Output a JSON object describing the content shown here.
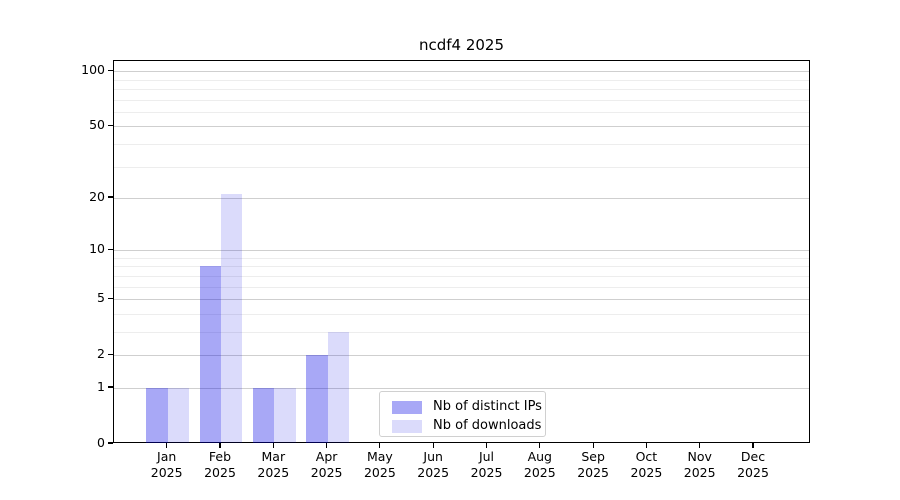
{
  "chart_data": {
    "type": "bar",
    "title": "ncdf4 2025",
    "x_year": "2025",
    "categories": [
      "Jan",
      "Feb",
      "Mar",
      "Apr",
      "May",
      "Jun",
      "Jul",
      "Aug",
      "Sep",
      "Oct",
      "Nov",
      "Dec"
    ],
    "series": [
      {
        "name": "Nb of distinct IPs",
        "color": "rgba(0,0,230,0.34)",
        "color_hex": "#a8a8f6",
        "values": [
          1,
          8,
          1,
          2,
          0,
          0,
          0,
          0,
          0,
          0,
          0,
          0
        ]
      },
      {
        "name": "Nb of downloads",
        "color": "rgba(0,0,230,0.14)",
        "color_hex": "#dbdbfc",
        "values": [
          1,
          21,
          1,
          3,
          0,
          0,
          0,
          0,
          0,
          0,
          0,
          0
        ]
      }
    ],
    "yscale": "log1p",
    "ylim": [
      0,
      113.5
    ],
    "yticks": [
      0,
      1,
      2,
      5,
      10,
      20,
      50,
      100
    ],
    "ytick_labels": [
      "0",
      "1",
      "2",
      "5",
      "10",
      "20",
      "50",
      "100"
    ],
    "minor_gridlines": [
      3,
      4,
      6,
      7,
      8,
      9,
      30,
      40,
      60,
      70,
      80,
      90
    ],
    "grid": true,
    "legend_position": "lower center"
  },
  "colors": {
    "major_grid": "#cfcfcf",
    "minor_grid": "#ededed",
    "spine": "#000000",
    "background": "#ffffff",
    "legend_border": "#d0d0d0",
    "text": "#000000"
  }
}
